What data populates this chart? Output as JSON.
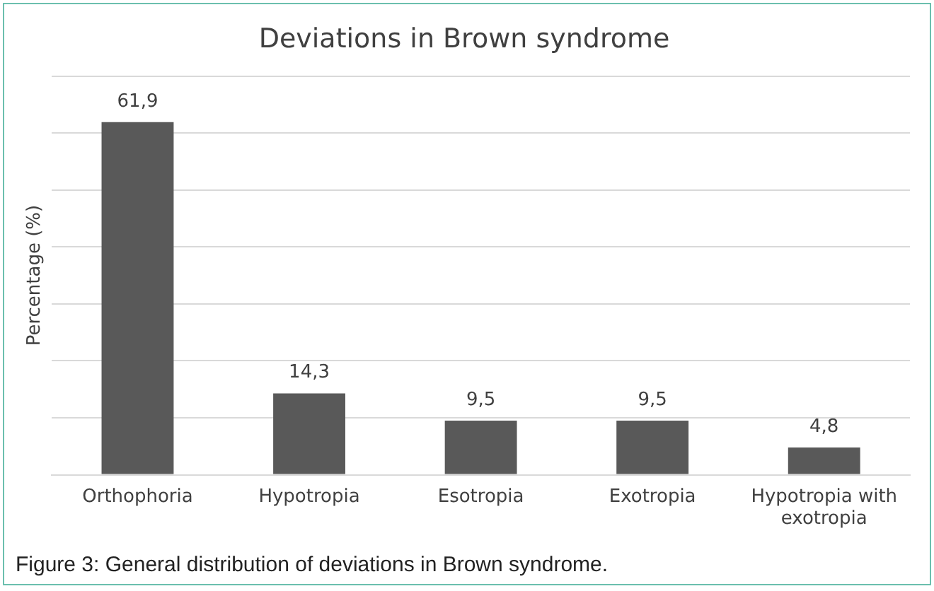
{
  "chart_data": {
    "type": "bar",
    "title": "Deviations in Brown syndrome",
    "ylabel": "Percentage (%)",
    "categories": [
      "Orthophoria",
      "Hypotropia",
      "Esotropia",
      "Exotropia",
      "Hypotropia with exotropia"
    ],
    "values": [
      61.9,
      14.3,
      9.5,
      9.5,
      4.8
    ],
    "color": "#595959",
    "value_labels": [
      "61,9",
      "14,3",
      "9,5",
      "9,5",
      "4,8"
    ],
    "ylim": [
      0,
      70
    ],
    "yticks": [
      {
        "value": 0,
        "label": null
      },
      {
        "value": 10,
        "label": null
      },
      {
        "value": 20,
        "label": null
      },
      {
        "value": 30,
        "label": null
      },
      {
        "value": 40,
        "label": null
      },
      {
        "value": 50,
        "label": null
      },
      {
        "value": 60,
        "label": null
      },
      {
        "value": 70,
        "label": null
      }
    ],
    "grid": "y",
    "legend": false,
    "tick_labels": "x",
    "annotations": [
      "Figure 3: General distribution of deviations in Brown syndrome."
    ]
  }
}
